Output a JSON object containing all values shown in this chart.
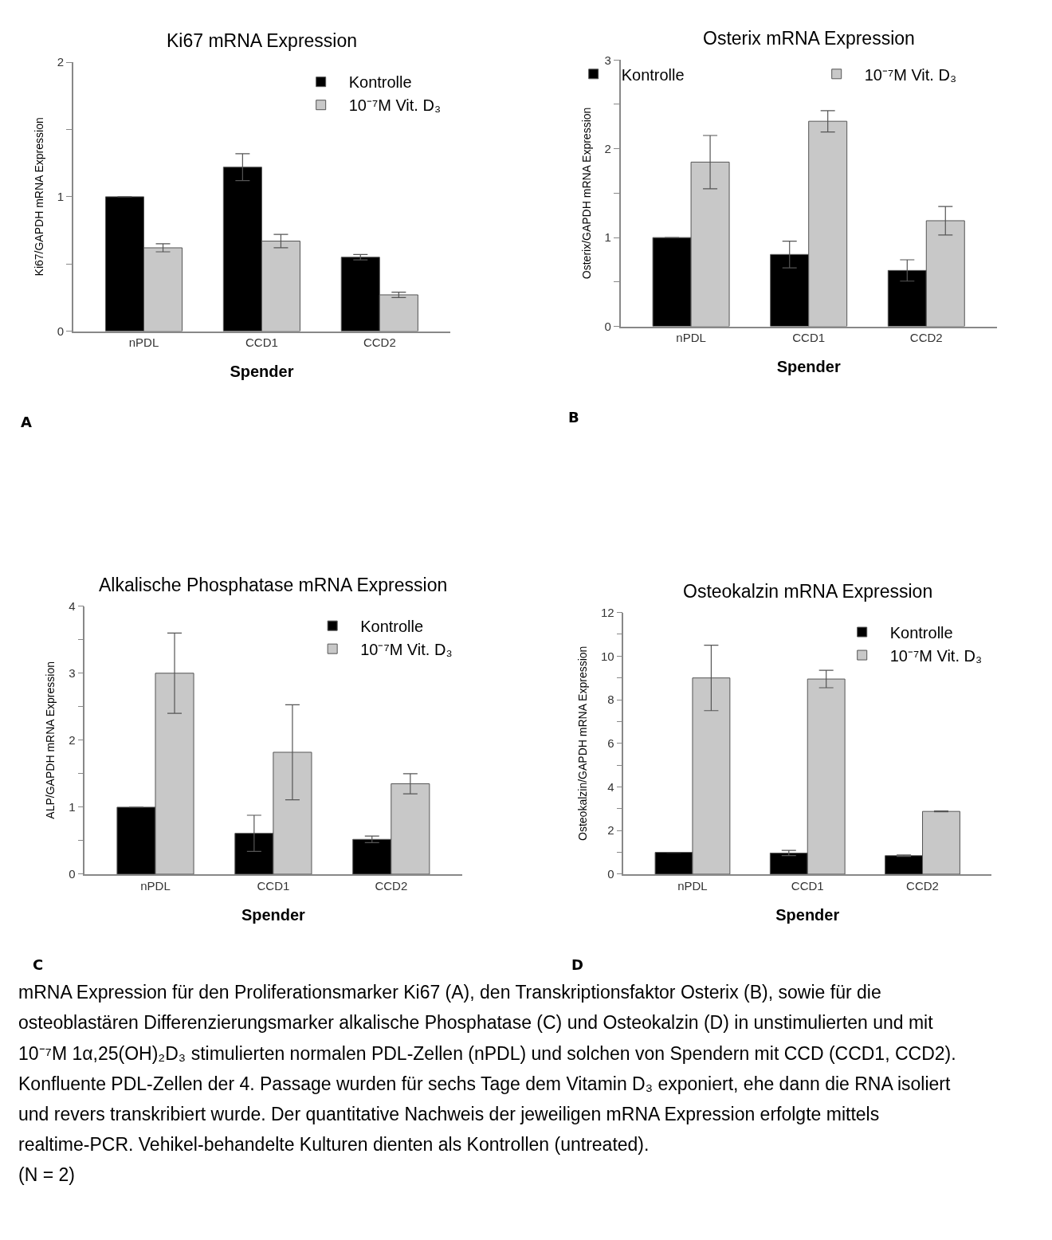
{
  "chart_data": [
    {
      "type": "bar",
      "title": "Ki67 mRNA Expression",
      "xlabel": "Spender",
      "ylabel": "Ki67/GAPDH mRNA Expression",
      "categories": [
        "nPDL",
        "CCD1",
        "CCD2"
      ],
      "series": [
        {
          "name": "Kontrolle",
          "color": "#000000",
          "values": [
            1.0,
            1.22,
            0.55
          ],
          "errors": [
            null,
            0.1,
            0.02
          ]
        },
        {
          "name": "10⁻⁷M Vit. D₃",
          "color": "#c8c8c8",
          "values": [
            0.62,
            0.67,
            0.27
          ],
          "errors": [
            0.03,
            0.05,
            0.02
          ]
        }
      ],
      "ylim": [
        0,
        2
      ],
      "yticks": [
        0,
        {
          "value": 0.5,
          "label": null
        },
        1,
        {
          "value": 1.5,
          "label": null
        },
        2
      ],
      "legend": "top right",
      "annotations": [
        "A"
      ]
    },
    {
      "type": "bar",
      "title": "Osterix mRNA Expression",
      "xlabel": "Spender",
      "ylabel": "Osterix/GAPDH mRNA Expression",
      "categories": [
        "nPDL",
        "CCD1",
        "CCD2"
      ],
      "series": [
        {
          "name": "Kontrolle",
          "color": "#000000",
          "values": [
            1.0,
            0.81,
            0.63
          ],
          "errors": [
            null,
            0.15,
            0.12
          ]
        },
        {
          "name": "10⁻⁷M Vit. D₃",
          "color": "#c8c8c8",
          "values": [
            1.85,
            2.31,
            1.19
          ],
          "errors": [
            0.3,
            0.12,
            0.16
          ]
        }
      ],
      "ylim": [
        0,
        3
      ],
      "yticks": [
        0,
        {
          "value": 0.5,
          "label": null
        },
        1,
        {
          "value": 1.5,
          "label": null
        },
        2,
        {
          "value": 2.5,
          "label": null
        },
        3
      ],
      "legend": "top",
      "annotations": [
        "B"
      ]
    },
    {
      "type": "bar",
      "title": "Alkalische Phosphatase mRNA Expression",
      "xlabel": "Spender",
      "ylabel": "ALP/GAPDH mRNA Expression",
      "categories": [
        "nPDL",
        "CCD1",
        "CCD2"
      ],
      "series": [
        {
          "name": "Kontrolle",
          "color": "#000000",
          "values": [
            1.0,
            0.61,
            0.52
          ],
          "errors": [
            null,
            0.27,
            0.05
          ]
        },
        {
          "name": "10⁻⁷M Vit. D₃",
          "color": "#c8c8c8",
          "values": [
            3.0,
            1.82,
            1.35
          ],
          "errors": [
            0.6,
            0.71,
            0.15
          ]
        }
      ],
      "ylim": [
        0,
        4
      ],
      "yticks": [
        0,
        {
          "value": 0.5,
          "label": null
        },
        1,
        {
          "value": 1.5,
          "label": null
        },
        2,
        {
          "value": 2.5,
          "label": null
        },
        3,
        {
          "value": 3.5,
          "label": null
        },
        4
      ],
      "legend": "top right",
      "annotations": [
        "C"
      ]
    },
    {
      "type": "bar",
      "title": "Osteokalzin mRNA Expression",
      "xlabel": "Spender",
      "ylabel": "Osteokalzin/GAPDH mRNA Expression",
      "categories": [
        "nPDL",
        "CCD1",
        "CCD2"
      ],
      "series": [
        {
          "name": "Kontrolle",
          "color": "#000000",
          "values": [
            1.0,
            0.97,
            0.85
          ],
          "errors": [
            null,
            0.12,
            0.03
          ]
        },
        {
          "name": "10⁻⁷M Vit. D₃",
          "color": "#c8c8c8",
          "values": [
            9.0,
            8.95,
            2.88
          ],
          "errors": [
            1.5,
            0.4,
            0.02
          ]
        }
      ],
      "ylim": [
        0,
        12
      ],
      "yticks": [
        0,
        {
          "value": 1,
          "label": null
        },
        2,
        {
          "value": 3,
          "label": null
        },
        4,
        {
          "value": 5,
          "label": null
        },
        6,
        {
          "value": 7,
          "label": null
        },
        8,
        {
          "value": 9,
          "label": null
        },
        10,
        {
          "value": 11,
          "label": null
        },
        12
      ],
      "legend": "top right",
      "annotations": [
        "D",
        "mRNA Expression für den Proliferationsmarker Ki67 (A), den Transkriptionsfaktor Osterix (B), sowie für die osteoblastären Differenzierungsmarker alkalische Phosphatase (C) und Osteokalzin (D) in unstimulierten und mit 10⁻⁷M 1α,25(OH)₂D₃ stimulierten normalen PDL-Zellen (nPDL) und solchen von Spendern mit CCD (CCD1, CCD2). Konfluente PDL-Zellen der 4. Passage wurden für sechs Tage dem Vitamin D₃ exponiert, ehe dann die RNA isoliert und revers transkribiert wurde. Der quantitative Nachweis der jeweiligen mRNA Expression erfolgte mittels realtime-PCR. Vehikel-behandelte Kulturen dienten als Kontrollen (untreated).",
        "(N = 2)"
      ]
    }
  ]
}
